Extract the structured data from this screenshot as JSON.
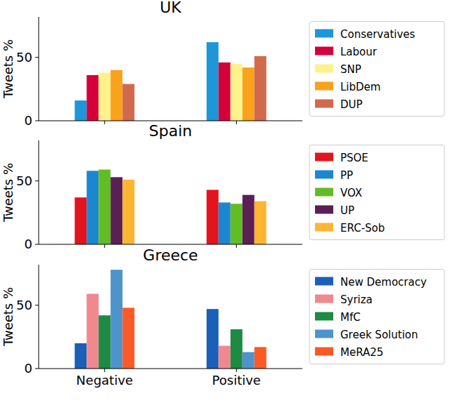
{
  "chart_data": [
    {
      "type": "bar",
      "title": "UK",
      "y_label": "Tweets %",
      "categories": [
        "Negative",
        "Positive"
      ],
      "series": [
        {
          "name": "Conservatives",
          "color": "#1f96d8",
          "values": [
            16,
            62
          ]
        },
        {
          "name": "Labour",
          "color": "#d5003a",
          "values": [
            36,
            46
          ]
        },
        {
          "name": "SNP",
          "color": "#fdf28c",
          "values": [
            38,
            45
          ]
        },
        {
          "name": "LibDem",
          "color": "#f9a21b",
          "values": [
            40,
            42
          ]
        },
        {
          "name": "DUP",
          "color": "#d2694c",
          "values": [
            29,
            51
          ]
        }
      ],
      "ylim": [
        0,
        82
      ],
      "yticks": [
        0,
        50
      ],
      "legend": "right",
      "tick_labels": "y"
    },
    {
      "type": "bar",
      "title": "Spain",
      "y_label": "Tweets %",
      "categories": [
        "Negative",
        "Positive"
      ],
      "series": [
        {
          "name": "PSOE",
          "color": "#e3141c",
          "values": [
            37,
            43
          ]
        },
        {
          "name": "PP",
          "color": "#1d86d1",
          "values": [
            58,
            33
          ]
        },
        {
          "name": "VOX",
          "color": "#62bd24",
          "values": [
            59,
            32
          ]
        },
        {
          "name": "UP",
          "color": "#5a1f55",
          "values": [
            53,
            39
          ]
        },
        {
          "name": "ERC-Sob",
          "color": "#fdb532",
          "values": [
            51,
            34
          ]
        }
      ],
      "ylim": [
        0,
        82
      ],
      "yticks": [
        0,
        50
      ],
      "legend": "right",
      "tick_labels": "y"
    },
    {
      "type": "bar",
      "title": "Greece",
      "y_label": "Tweets %",
      "categories": [
        "Negative",
        "Positive"
      ],
      "series": [
        {
          "name": "New Democracy",
          "color": "#1a5fb8",
          "values": [
            20,
            47
          ]
        },
        {
          "name": "Syriza",
          "color": "#f08890",
          "values": [
            59,
            18
          ]
        },
        {
          "name": "MfC",
          "color": "#1f8a42",
          "values": [
            42,
            31
          ]
        },
        {
          "name": "Greek Solution",
          "color": "#4e94cc",
          "values": [
            78,
            13
          ]
        },
        {
          "name": "MeRA25",
          "color": "#fb5a26",
          "values": [
            48,
            17
          ]
        }
      ],
      "ylim": [
        0,
        82
      ],
      "yticks": [
        0,
        50
      ],
      "legend": "right",
      "tick_labels": true
    }
  ]
}
